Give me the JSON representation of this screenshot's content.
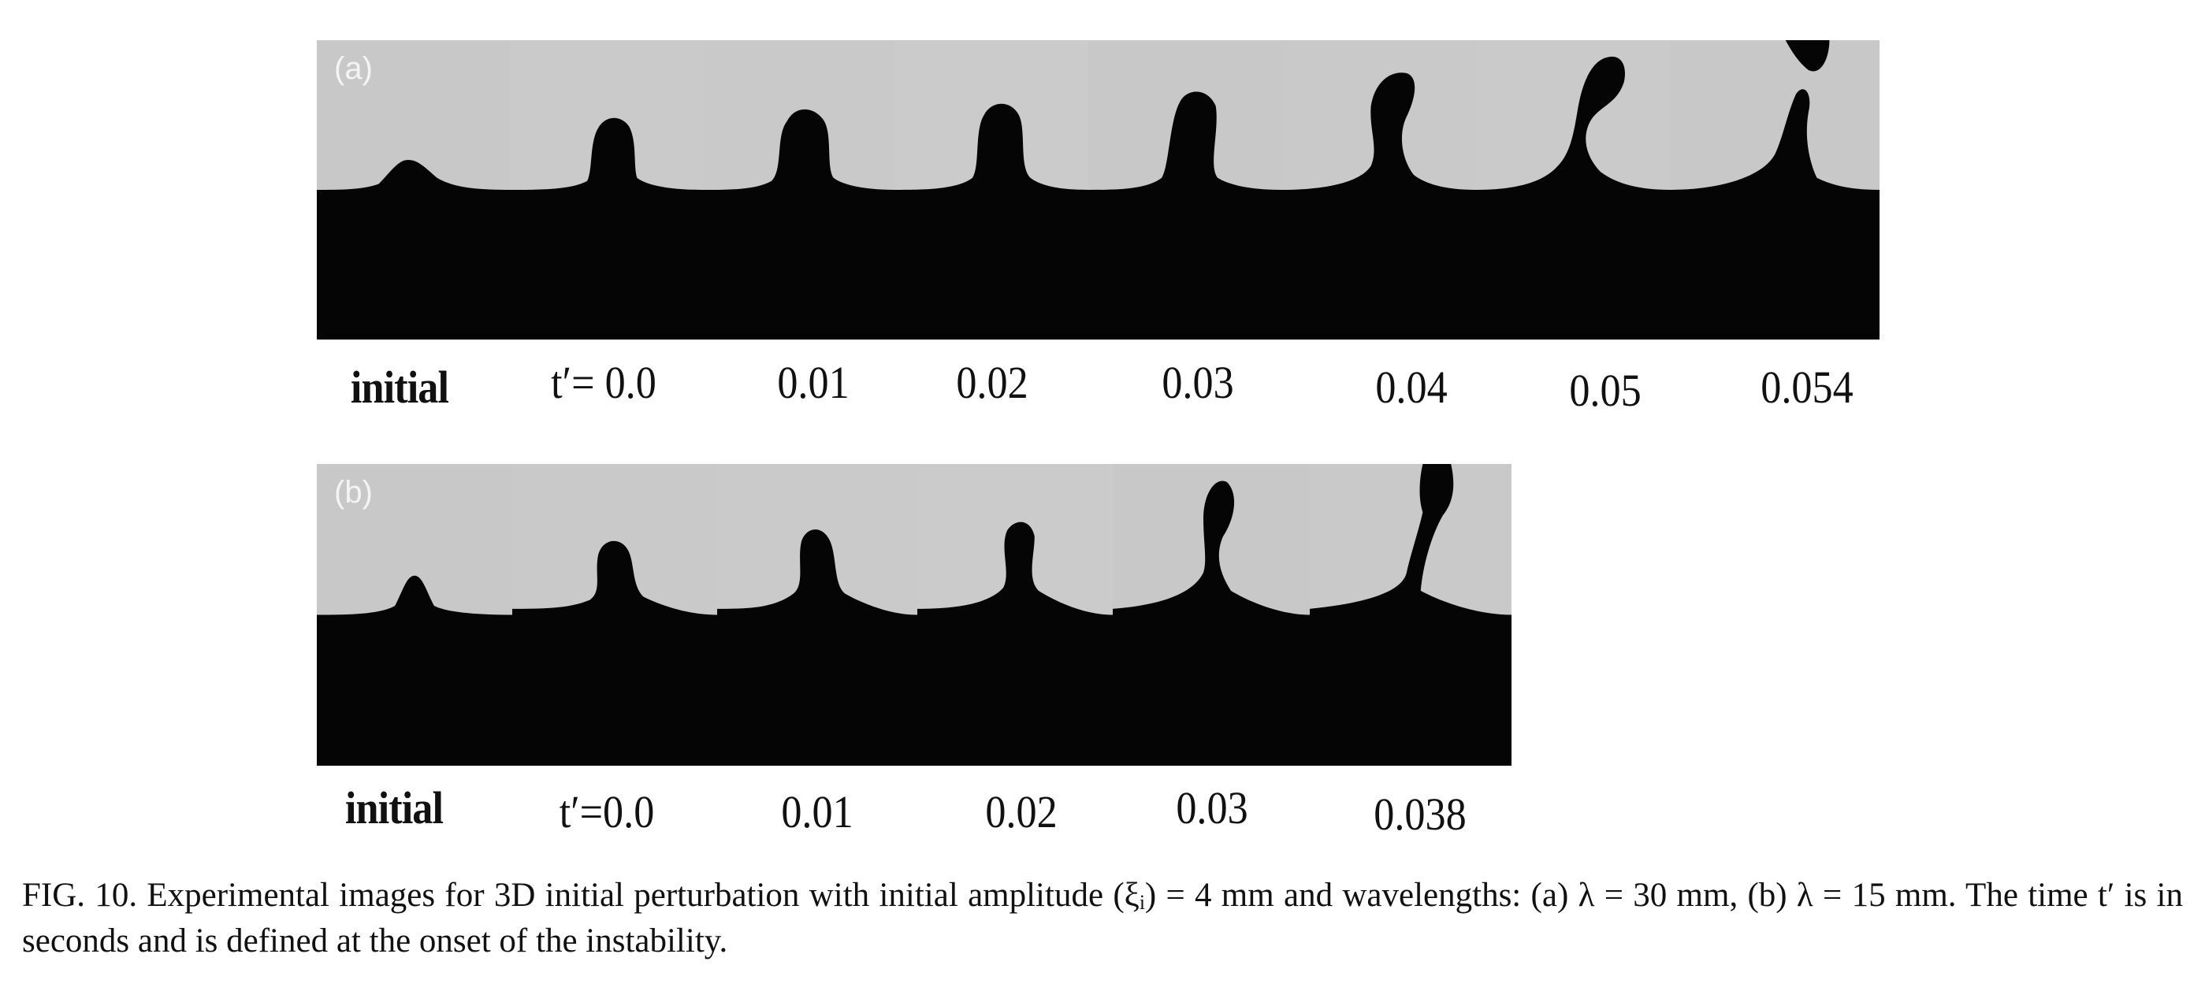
{
  "figure": {
    "panel_a": {
      "letter": "(a)",
      "labels": [
        "initial",
        "t′= 0.0",
        "0.01",
        "0.02",
        "0.03",
        "0.04",
        "0.05",
        "0.054"
      ]
    },
    "panel_b": {
      "letter": "(b)",
      "labels": [
        "initial",
        "t′=0.0",
        "0.01",
        "0.02",
        "0.03",
        "0.038"
      ]
    }
  },
  "caption": {
    "text": "FIG. 10. Experimental images for 3D initial perturbation with initial amplitude (ξᵢ) = 4 mm and wavelengths: (a) λ = 30 mm, (b) λ = 15 mm. The time t′ is in seconds and is defined at the onset of the instability."
  },
  "colors": {
    "dark_fluid": "#050505",
    "light_fluid": "#c9c9c9"
  }
}
